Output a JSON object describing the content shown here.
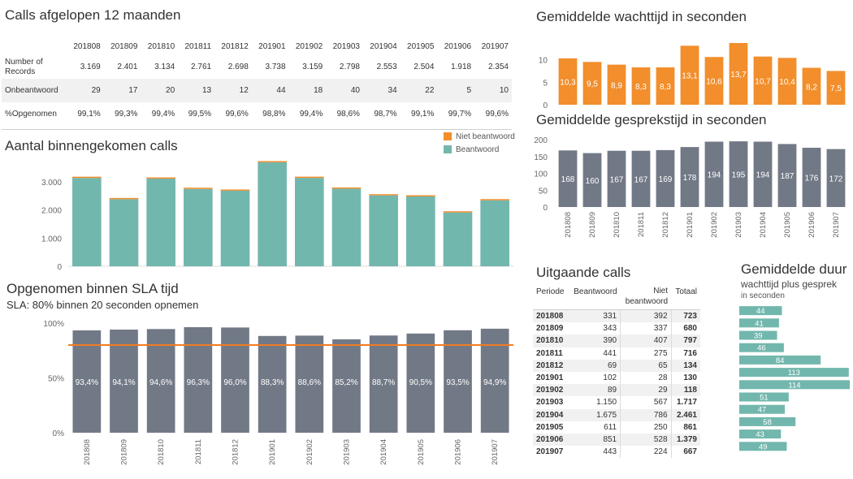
{
  "colors": {
    "teal": "#72b7ad",
    "orange": "#f28e2b",
    "slate": "#727986",
    "sla_line": "#f07c22",
    "axis": "#666666"
  },
  "summary": {
    "title": "Calls afgelopen 12 maanden",
    "periods": [
      "201808",
      "201809",
      "201810",
      "201811",
      "201812",
      "201901",
      "201902",
      "201903",
      "201904",
      "201905",
      "201906",
      "201907"
    ],
    "rows": [
      {
        "label_line1": "Number of",
        "label_line2": "Records",
        "values": [
          "3.169",
          "2.401",
          "3.134",
          "2.761",
          "2.698",
          "3.738",
          "3.159",
          "2.798",
          "2.553",
          "2.504",
          "1.918",
          "2.354"
        ]
      },
      {
        "label_line1": "Onbeantwoord",
        "label_line2": "",
        "values": [
          "29",
          "17",
          "20",
          "13",
          "12",
          "44",
          "18",
          "40",
          "34",
          "22",
          "5",
          "10"
        ]
      },
      {
        "label_line1": "%Opgenomen",
        "label_line2": "",
        "values": [
          "99,1%",
          "99,3%",
          "99,4%",
          "99,5%",
          "99,6%",
          "98,8%",
          "99,4%",
          "98,6%",
          "98,7%",
          "99,1%",
          "99,7%",
          "99,6%"
        ]
      }
    ]
  },
  "legend": {
    "niet": "Niet beantwoord",
    "beantwoord": "Beantwoord"
  },
  "chart_data": [
    {
      "id": "incoming",
      "type": "bar",
      "stacked": true,
      "title": "Aantal binnengekomen calls",
      "categories": [
        "201808",
        "201809",
        "201810",
        "201811",
        "201812",
        "201901",
        "201902",
        "201903",
        "201904",
        "201905",
        "201906",
        "201907"
      ],
      "series": [
        {
          "name": "Beantwoord",
          "values": [
            3140,
            2384,
            3114,
            2748,
            2686,
            3694,
            3141,
            2758,
            2519,
            2482,
            1913,
            2344
          ]
        },
        {
          "name": "Niet beantwoord",
          "values": [
            29,
            17,
            20,
            13,
            12,
            44,
            18,
            40,
            34,
            22,
            5,
            10
          ]
        }
      ],
      "ylim": [
        0,
        4000
      ],
      "ticks": [
        0,
        1000,
        2000,
        3000
      ],
      "tick_labels": [
        "0",
        "1.000",
        "2.000",
        "3.000"
      ],
      "xlabel": "",
      "ylabel": ""
    },
    {
      "id": "sla",
      "type": "bar",
      "title": "Opgenomen binnen SLA tijd",
      "subtitle": "SLA: 80% binnen 20 seconden opnemen",
      "categories": [
        "201808",
        "201809",
        "201810",
        "201811",
        "201812",
        "201901",
        "201902",
        "201903",
        "201904",
        "201905",
        "201906",
        "201907"
      ],
      "values": [
        93.4,
        94.1,
        94.6,
        96.3,
        96.0,
        88.3,
        88.6,
        85.2,
        88.7,
        90.5,
        93.5,
        94.9
      ],
      "value_labels": [
        "93,4%",
        "94,1%",
        "94,6%",
        "96,3%",
        "96,0%",
        "88,3%",
        "88,6%",
        "85,2%",
        "88,7%",
        "90,5%",
        "93,5%",
        "94,9%"
      ],
      "reference_line": 80,
      "ylim": [
        0,
        100
      ],
      "ticks": [
        0,
        50,
        100
      ],
      "tick_labels": [
        "0%",
        "50%",
        "100%"
      ]
    },
    {
      "id": "wait",
      "type": "bar",
      "title": "Gemiddelde wachttijd in seconden",
      "categories": [
        "201808",
        "201809",
        "201810",
        "201811",
        "201812",
        "201901",
        "201902",
        "201903",
        "201904",
        "201905",
        "201906",
        "201907"
      ],
      "values": [
        10.3,
        9.5,
        8.9,
        8.3,
        8.3,
        13.1,
        10.6,
        13.7,
        10.7,
        10.4,
        8.2,
        7.5
      ],
      "value_labels": [
        "10,3",
        "9,5",
        "8,9",
        "8,3",
        "8,3",
        "13,1",
        "10,6",
        "13,7",
        "10,7",
        "10,4",
        "8,2",
        "7,5"
      ],
      "ylim": [
        0,
        14
      ],
      "ticks": [
        0,
        5,
        10
      ],
      "tick_labels": [
        "0",
        "5",
        "10"
      ]
    },
    {
      "id": "talk",
      "type": "bar",
      "title": "Gemiddelde gesprekstijd in seconden",
      "categories": [
        "201808",
        "201809",
        "201810",
        "201811",
        "201812",
        "201901",
        "201902",
        "201903",
        "201904",
        "201905",
        "201906",
        "201907"
      ],
      "values": [
        168,
        160,
        167,
        167,
        169,
        178,
        194,
        195,
        194,
        187,
        176,
        172
      ],
      "value_labels": [
        "168",
        "160",
        "167",
        "167",
        "169",
        "178",
        "194",
        "195",
        "194",
        "187",
        "176",
        "172"
      ],
      "ylim": [
        0,
        200
      ],
      "ticks": [
        0,
        50,
        100,
        150,
        200
      ],
      "tick_labels": [
        "0",
        "50",
        "100",
        "150",
        "200"
      ]
    },
    {
      "id": "duration",
      "type": "bar",
      "orientation": "horizontal",
      "title": "Gemiddelde duur",
      "subtitle": "wachttijd plus gesprek",
      "subtitle2": "in seconden",
      "categories": [
        "201808",
        "201809",
        "201810",
        "201811",
        "201812",
        "201901",
        "201902",
        "201903",
        "201904",
        "201905",
        "201906",
        "201907"
      ],
      "values": [
        44,
        41,
        39,
        46,
        84,
        113,
        114,
        51,
        47,
        58,
        43,
        49
      ],
      "value_labels": [
        "44",
        "41",
        "39",
        "46",
        "84",
        "113",
        "114",
        "51",
        "47",
        "58",
        "43",
        "49"
      ],
      "xlim": [
        0,
        114
      ]
    },
    {
      "id": "outgoing",
      "type": "table",
      "title": "Uitgaande calls",
      "headers": {
        "periode": "Periode",
        "beantwoord": "Beantwoord",
        "niet1": "Niet",
        "niet2": "beantwoord",
        "totaal": "Totaal"
      },
      "rows": [
        {
          "periode": "201808",
          "beantwoord": "331",
          "niet": "392",
          "totaal": "723"
        },
        {
          "periode": "201809",
          "beantwoord": "343",
          "niet": "337",
          "totaal": "680"
        },
        {
          "periode": "201810",
          "beantwoord": "390",
          "niet": "407",
          "totaal": "797"
        },
        {
          "periode": "201811",
          "beantwoord": "441",
          "niet": "275",
          "totaal": "716"
        },
        {
          "periode": "201812",
          "beantwoord": "69",
          "niet": "65",
          "totaal": "134"
        },
        {
          "periode": "201901",
          "beantwoord": "102",
          "niet": "28",
          "totaal": "130"
        },
        {
          "periode": "201902",
          "beantwoord": "89",
          "niet": "29",
          "totaal": "118"
        },
        {
          "periode": "201903",
          "beantwoord": "1.150",
          "niet": "567",
          "totaal": "1.717"
        },
        {
          "periode": "201904",
          "beantwoord": "1.675",
          "niet": "786",
          "totaal": "2.461"
        },
        {
          "periode": "201905",
          "beantwoord": "611",
          "niet": "250",
          "totaal": "861"
        },
        {
          "periode": "201906",
          "beantwoord": "851",
          "niet": "528",
          "totaal": "1.379"
        },
        {
          "periode": "201907",
          "beantwoord": "443",
          "niet": "224",
          "totaal": "667"
        }
      ]
    }
  ]
}
